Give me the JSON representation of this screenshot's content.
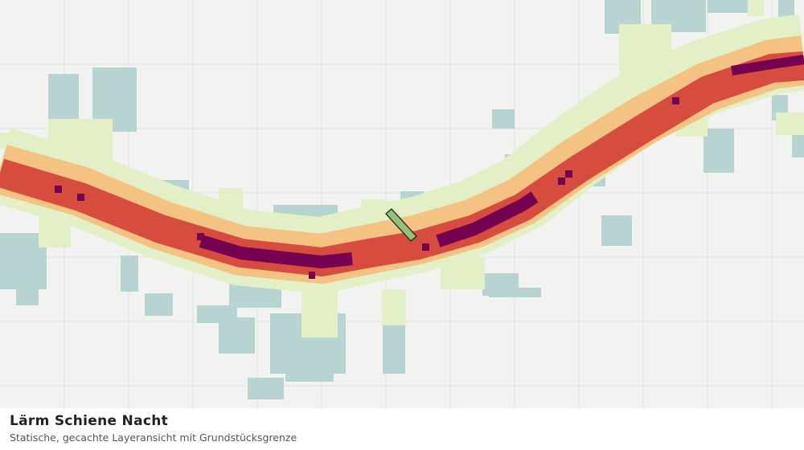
{
  "legend": {
    "title": "Lärm Schiene Nacht",
    "subtitle": "Statische, gecachte Layeransicht mit Grundstücksgrenze"
  }
}
